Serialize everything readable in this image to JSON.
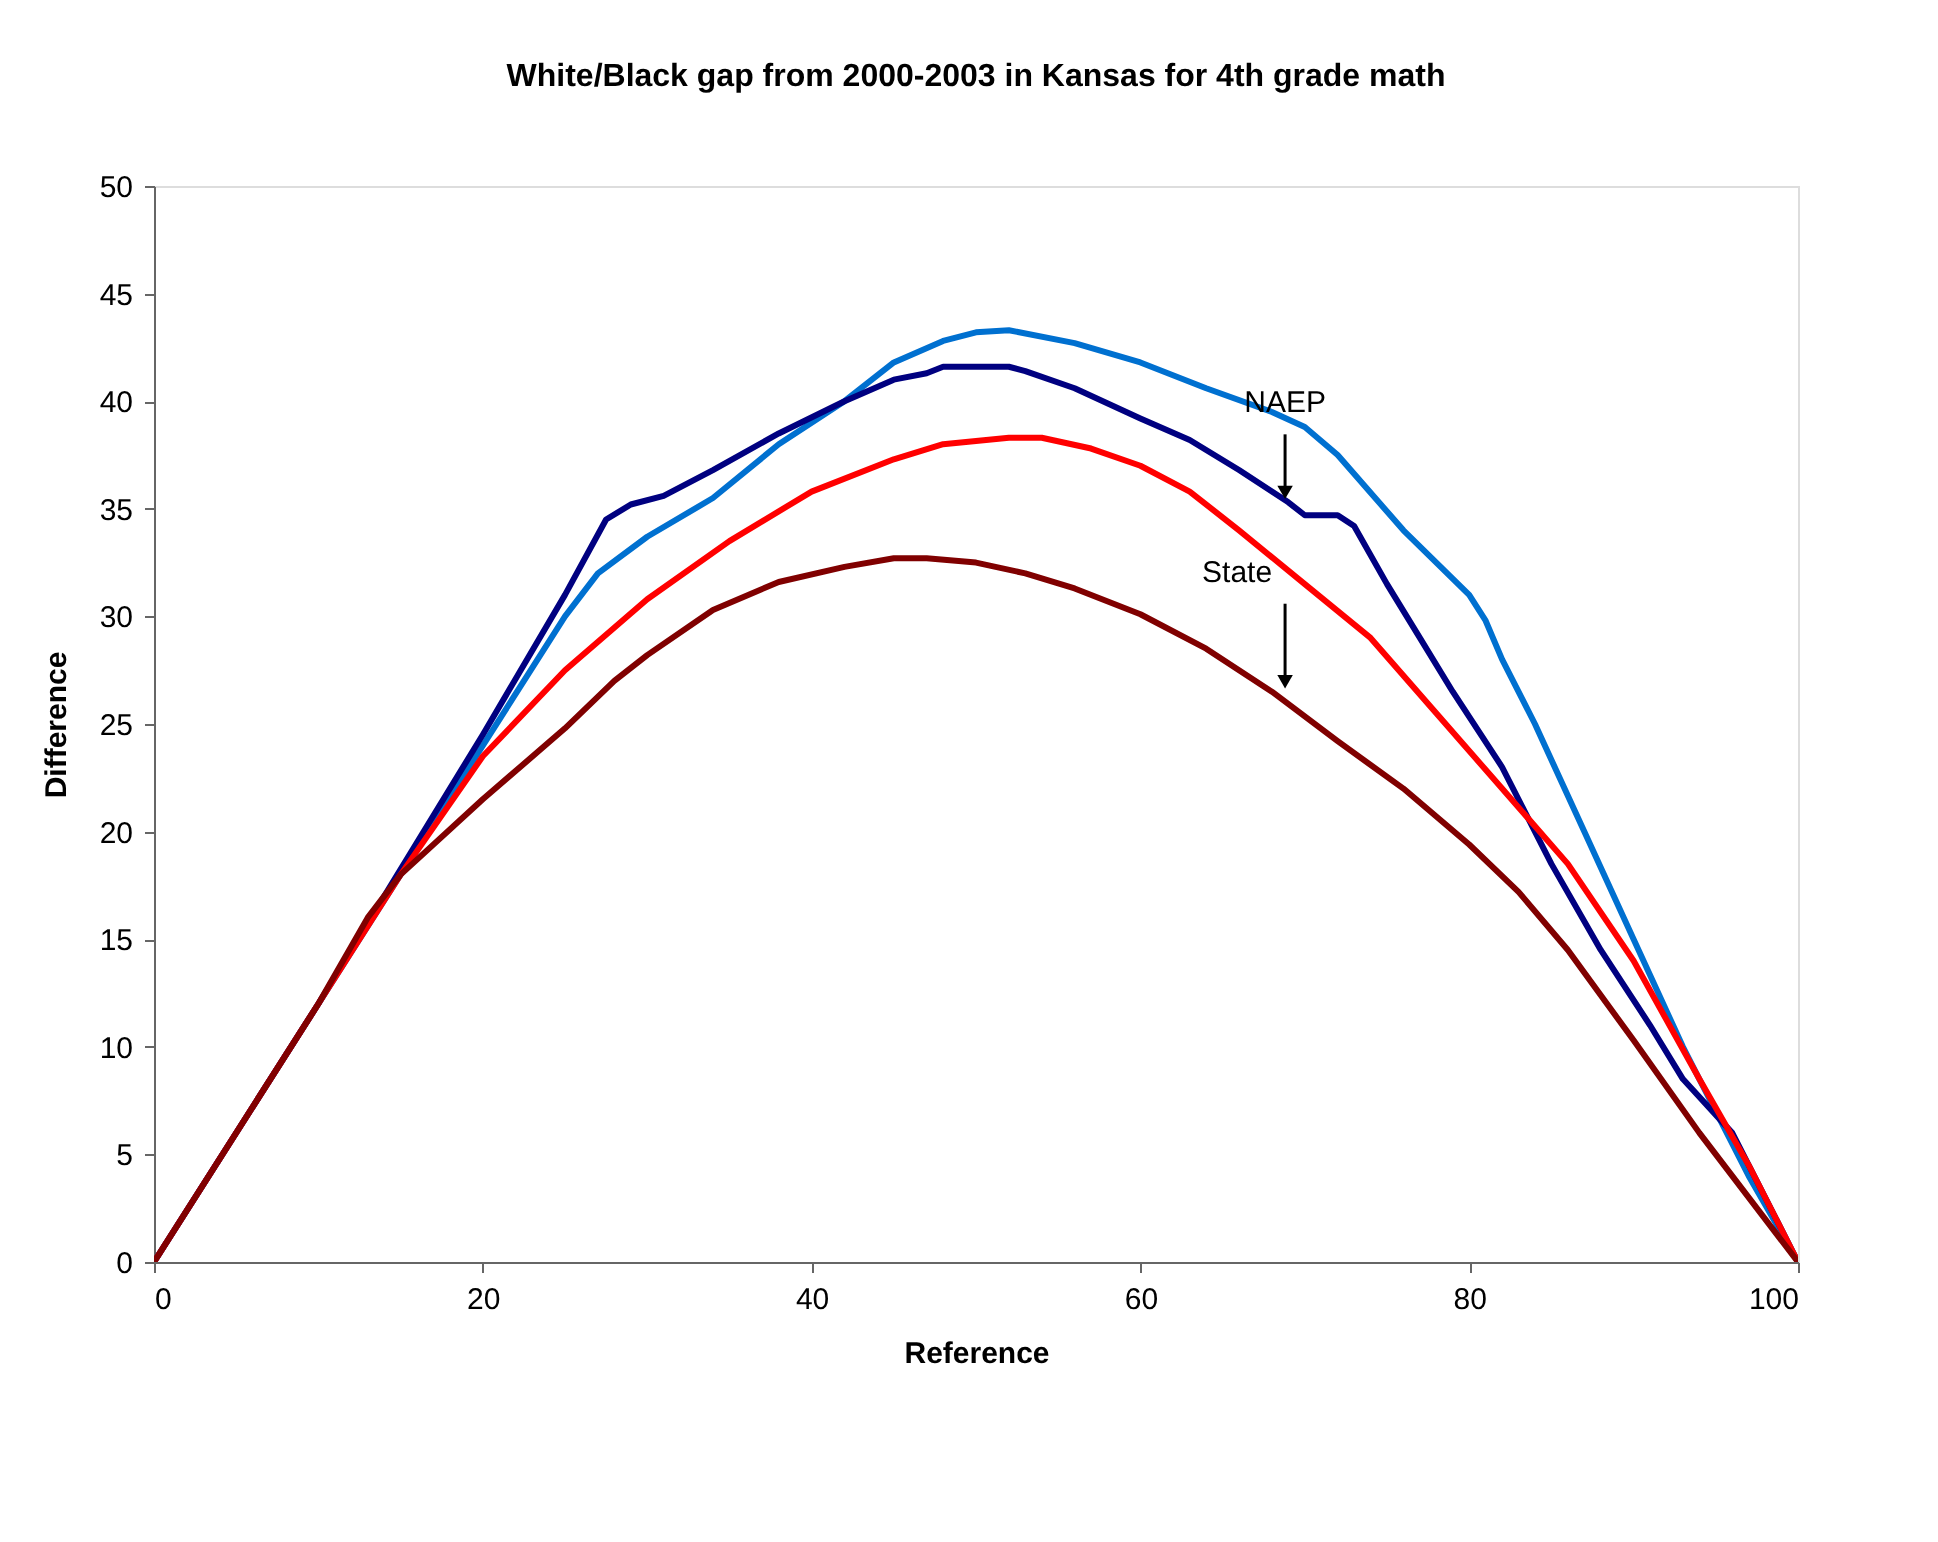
{
  "chart_data": {
    "type": "line",
    "title": "White/Black gap from 2000-2003 in Kansas for 4th grade math",
    "xlabel": "Reference",
    "ylabel": "Difference",
    "xlim": [
      0,
      100
    ],
    "xticks": [
      0,
      20,
      40,
      60,
      80,
      100
    ],
    "ylim": [
      0,
      50
    ],
    "yticks": [
      0,
      5,
      10,
      15,
      20,
      25,
      30,
      35,
      40,
      45,
      50
    ],
    "marker": "none",
    "line_style": "solid",
    "series": [
      {
        "color": "#0070d0",
        "x": [
          0,
          10,
          20,
          25,
          27,
          30,
          34,
          38,
          42,
          45,
          48,
          50,
          52,
          56,
          60,
          64,
          68,
          70,
          72,
          76,
          80,
          81,
          82,
          84,
          87,
          90,
          93,
          95,
          97,
          100
        ],
        "values": [
          0,
          12,
          24,
          30,
          32,
          33.7,
          35.5,
          38,
          40,
          41.8,
          42.8,
          43.2,
          43.3,
          42.7,
          41.8,
          40.6,
          39.5,
          38.8,
          37.5,
          34,
          31,
          29.8,
          28,
          25,
          20,
          15,
          10,
          7,
          4,
          0
        ]
      },
      {
        "color": "#000080",
        "x": [
          0,
          10,
          20,
          25,
          27.5,
          29,
          31,
          34,
          38,
          42,
          45,
          47,
          48,
          52,
          53,
          56,
          60,
          63,
          66,
          68,
          69,
          70,
          72,
          73,
          75,
          77,
          79,
          82,
          85,
          88,
          91,
          93,
          96,
          97,
          100
        ],
        "values": [
          0,
          12,
          24.5,
          31,
          34.5,
          35.2,
          35.6,
          36.8,
          38.5,
          40,
          41,
          41.3,
          41.6,
          41.6,
          41.4,
          40.6,
          39.2,
          38.2,
          36.8,
          35.8,
          35.3,
          34.7,
          34.7,
          34.2,
          31.5,
          29,
          26.5,
          23,
          18.5,
          14.5,
          11,
          8.5,
          6,
          4.5,
          0
        ]
      },
      {
        "color": "#ff0000",
        "x": [
          0,
          10,
          15,
          20,
          25,
          30,
          35,
          40,
          45,
          48,
          52,
          54,
          57,
          60,
          63,
          66,
          70,
          74,
          78,
          82,
          86,
          90,
          94,
          97,
          100
        ],
        "values": [
          0,
          12,
          18,
          23.5,
          27.5,
          30.8,
          33.5,
          35.8,
          37.3,
          38,
          38.3,
          38.3,
          37.8,
          37,
          35.8,
          34,
          31.5,
          29,
          25.5,
          22,
          18.5,
          14,
          8.5,
          4.5,
          0
        ]
      },
      {
        "color": "#800000",
        "x": [
          0,
          10,
          13,
          15,
          20,
          25,
          28,
          30,
          34,
          38,
          42,
          45,
          47,
          50,
          53,
          56,
          60,
          64,
          68,
          72,
          76,
          80,
          83,
          86,
          90,
          94,
          100
        ],
        "values": [
          0,
          12,
          16,
          18,
          21.5,
          24.8,
          27,
          28.2,
          30.3,
          31.6,
          32.3,
          32.7,
          32.7,
          32.5,
          32,
          31.3,
          30.1,
          28.5,
          26.5,
          24.2,
          22,
          19.4,
          17.2,
          14.5,
          10.3,
          6,
          0
        ]
      }
    ],
    "annotations": [
      {
        "text": "NAEP",
        "x": 68.8,
        "y": 35.3
      },
      {
        "text": "State",
        "x": 68.8,
        "y": 26.5
      }
    ]
  }
}
